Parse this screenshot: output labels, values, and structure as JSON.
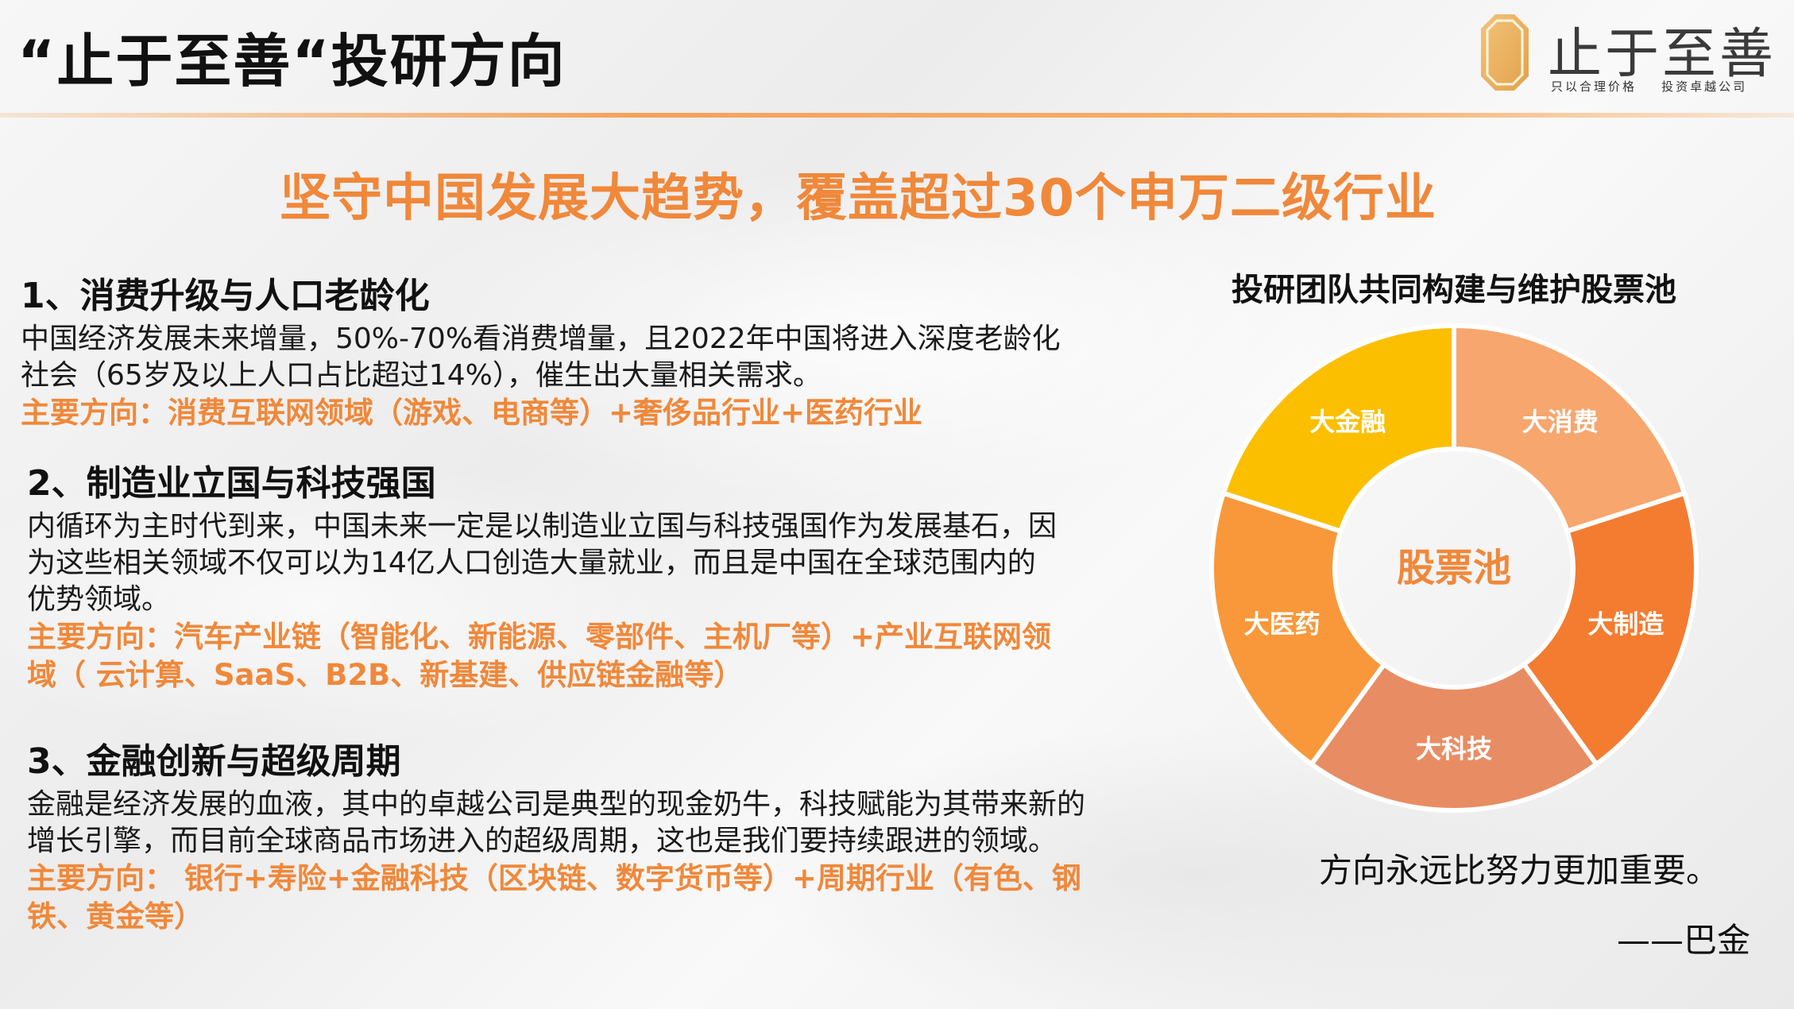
{
  "title": "“止于至善“投研方向",
  "logo": {
    "name": "止于至善",
    "tagline_left": "只以合理价格",
    "tagline_right": "投资卓越公司"
  },
  "headline": "坚守中国发展大趋势，覆盖超过30个申万二级行业",
  "sections": [
    {
      "title": "1、消费升级与人口老龄化",
      "body": "中国经济发展未来增量，50%-70%看消费增量，且2022年中国将进入深度老龄化社会（65岁及以上人口占比超过14%），催生出大量相关需求。",
      "direction": "主要方向：消费互联网领域（游戏、电商等）+奢侈品行业+医药行业"
    },
    {
      "title": "2、制造业立国与科技强国",
      "body": "内循环为主时代到来，中国未来一定是以制造业立国与科技强国作为发展基石，因为这些相关领域不仅可以为14亿人口创造大量就业，而且是中国在全球范围内的优势领域。",
      "direction": "主要方向：汽车产业链（智能化、新能源、零部件、主机厂等）+产业互联网领域（ 云计算、SaaS、B2B、新基建、供应链金融等）"
    },
    {
      "title": "3、金融创新与超级周期",
      "body": "金融是经济发展的血液，其中的卓越公司是典型的现金奶牛，科技赋能为其带来新的增长引擎，而目前全球商品市场进入的超级周期，这也是我们要持续跟进的领域。",
      "direction": "主要方向： 银行+寿险+金融科技（区块链、数字货币等）+周期行业（有色、钢铁、黄金等）"
    }
  ],
  "chart_data": {
    "type": "pie",
    "title": "投研团队共同构建与维护股票池",
    "center_label": "股票池",
    "categories": [
      "大消费",
      "大制造",
      "大科技",
      "大医药",
      "大金融"
    ],
    "values": [
      1,
      1,
      1,
      1,
      1
    ],
    "colors": [
      "#f7a66d",
      "#f37c30",
      "#e88d63",
      "#f8983a",
      "#fbbf00"
    ]
  },
  "quote": "方向永远比努力更加重要。",
  "quote_author": "——巴金"
}
